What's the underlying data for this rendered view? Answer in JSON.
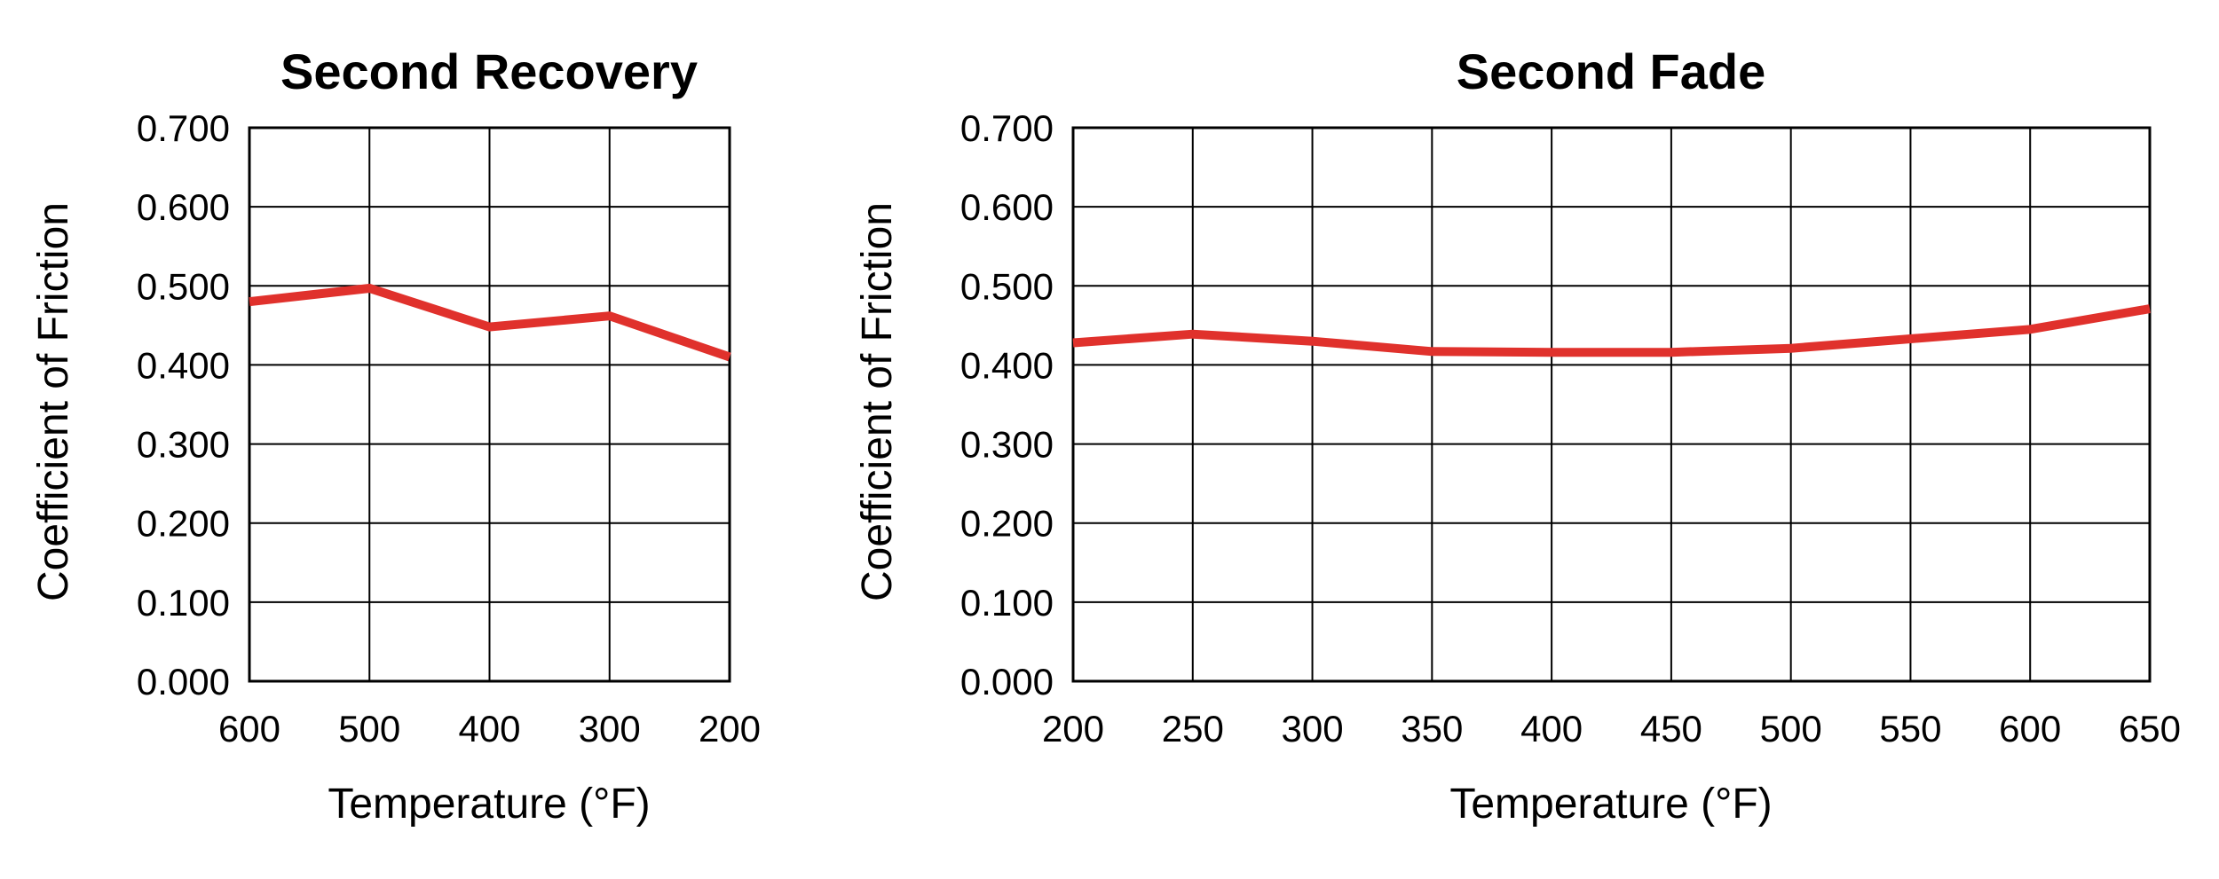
{
  "chart_data": [
    {
      "type": "line",
      "title": "Second Recovery",
      "xlabel": "Temperature (°F)",
      "ylabel": "Coefficient of Friction",
      "x": [
        600,
        500,
        400,
        300,
        200
      ],
      "x_ticks": [
        "600",
        "500",
        "400",
        "300",
        "200"
      ],
      "y_ticks": [
        "0.000",
        "0.100",
        "0.200",
        "0.300",
        "0.400",
        "0.500",
        "0.600",
        "0.700"
      ],
      "ylim": [
        0,
        0.7
      ],
      "xlim": [
        600,
        200
      ],
      "x_reversed": true,
      "grid": true,
      "series": [
        {
          "values": [
            0.48,
            0.497,
            0.448,
            0.462,
            0.41
          ],
          "color": "#e0312c"
        }
      ]
    },
    {
      "type": "line",
      "title": "Second Fade",
      "xlabel": "Temperature (°F)",
      "ylabel": "Coefficient of Friction",
      "x": [
        200,
        250,
        300,
        350,
        400,
        450,
        500,
        550,
        600,
        650
      ],
      "x_ticks": [
        "200",
        "250",
        "300",
        "350",
        "400",
        "450",
        "500",
        "550",
        "600",
        "650"
      ],
      "y_ticks": [
        "0.000",
        "0.100",
        "0.200",
        "0.300",
        "0.400",
        "0.500",
        "0.600",
        "0.700"
      ],
      "ylim": [
        0,
        0.7
      ],
      "xlim": [
        200,
        650
      ],
      "x_reversed": false,
      "grid": true,
      "series": [
        {
          "values": [
            0.428,
            0.439,
            0.43,
            0.417,
            0.416,
            0.416,
            0.421,
            0.433,
            0.445,
            0.471
          ],
          "color": "#e0312c"
        }
      ]
    }
  ]
}
